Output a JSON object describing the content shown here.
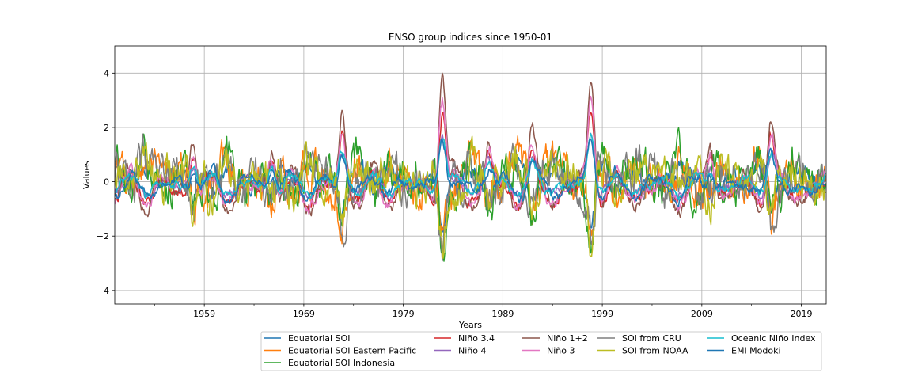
{
  "chart_data": {
    "type": "line",
    "title": "ENSO group indices since 1950-01",
    "xlabel": "Years",
    "ylabel": "Values",
    "xlim": [
      1950.0,
      2021.5
    ],
    "ylim": [
      -4.5,
      5.0
    ],
    "x_ticks": [
      {
        "value": 1959,
        "label": "1959"
      },
      {
        "value": 1969,
        "label": "1969"
      },
      {
        "value": 1979,
        "label": "1979"
      },
      {
        "value": 1989,
        "label": "1989"
      },
      {
        "value": 1999,
        "label": "1999"
      },
      {
        "value": 2009,
        "label": "2009"
      },
      {
        "value": 2019,
        "label": "2019"
      }
    ],
    "x_minor_ticks": [
      1954,
      1964,
      1974,
      1984,
      1994,
      2004,
      2014
    ],
    "y_ticks": [
      {
        "value": -4,
        "label": "−4"
      },
      {
        "value": -2,
        "label": "−2"
      },
      {
        "value": 0,
        "label": "0"
      },
      {
        "value": 2,
        "label": "2"
      },
      {
        "value": 4,
        "label": "4"
      }
    ],
    "grid": true,
    "legend_position": "bottom-right, below plot, 4 columns",
    "series": [
      {
        "name": "Equatorial SOI",
        "color": "#1f77b4",
        "style": "oscillating"
      },
      {
        "name": "Equatorial SOI Eastern Pacific",
        "color": "#ff7f0e",
        "style": "noisy"
      },
      {
        "name": "Equatorial SOI Indonesia",
        "color": "#2ca02c",
        "style": "noisy"
      },
      {
        "name": "Niño 3.4",
        "color": "#d62728",
        "style": "enso"
      },
      {
        "name": "Niño 4",
        "color": "#9467bd",
        "style": "smooth"
      },
      {
        "name": "Niño 1+2",
        "color": "#8c564b",
        "style": "enso"
      },
      {
        "name": "Niño 3",
        "color": "#e377c2",
        "style": "enso"
      },
      {
        "name": "SOI from CRU",
        "color": "#7f7f7f",
        "style": "noisy"
      },
      {
        "name": "SOI from NOAA",
        "color": "#bcbd22",
        "style": "noisy"
      },
      {
        "name": "Oceanic Niño Index",
        "color": "#17becf",
        "style": "smooth"
      },
      {
        "name": "EMI Modoki",
        "color": "#1f77b4",
        "style": "smooth"
      }
    ],
    "enso_events": [
      {
        "x": 1957.9,
        "amp": 2.2
      },
      {
        "x": 1965.8,
        "amp": 2.0
      },
      {
        "x": 1972.9,
        "amp": 2.7
      },
      {
        "x": 1982.9,
        "amp": 4.5
      },
      {
        "x": 1987.6,
        "amp": 1.8
      },
      {
        "x": 1991.9,
        "amp": 1.5
      },
      {
        "x": 1997.9,
        "amp": 4.2
      },
      {
        "x": 2009.9,
        "amp": 1.8
      },
      {
        "x": 2015.9,
        "amp": 2.6
      }
    ]
  }
}
